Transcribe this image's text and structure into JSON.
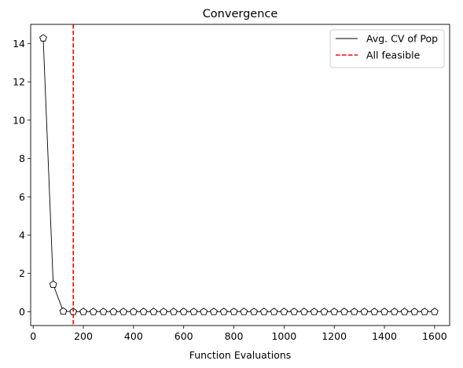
{
  "chart_data": {
    "type": "line",
    "title": "Convergence",
    "xlabel": "Function Evaluations",
    "ylabel": "",
    "xlim": [
      -10,
      1660
    ],
    "ylim": [
      -0.72,
      15.0
    ],
    "xticks": [
      0,
      200,
      400,
      600,
      800,
      1000,
      1200,
      1400,
      1600
    ],
    "yticks": [
      0,
      2,
      4,
      6,
      8,
      10,
      12,
      14
    ],
    "grid": false,
    "legend_position": "top-right",
    "series": [
      {
        "name": "Avg. CV of Pop",
        "color": "#000000",
        "marker": "pentagon",
        "x": [
          40,
          80,
          120,
          160,
          200,
          240,
          280,
          320,
          360,
          400,
          440,
          480,
          520,
          560,
          600,
          640,
          680,
          720,
          760,
          800,
          840,
          880,
          920,
          960,
          1000,
          1040,
          1080,
          1120,
          1160,
          1200,
          1240,
          1280,
          1320,
          1360,
          1400,
          1440,
          1480,
          1520,
          1560,
          1600
        ],
        "y": [
          14.28,
          1.42,
          0.02,
          0,
          0,
          0,
          0,
          0,
          0,
          0,
          0,
          0,
          0,
          0,
          0,
          0,
          0,
          0,
          0,
          0,
          0,
          0,
          0,
          0,
          0,
          0,
          0,
          0,
          0,
          0,
          0,
          0,
          0,
          0,
          0,
          0,
          0,
          0,
          0,
          0
        ]
      }
    ],
    "vlines": [
      {
        "name": "All feasible",
        "x": 160,
        "color": "#ff0000",
        "style": "dashed"
      }
    ]
  }
}
